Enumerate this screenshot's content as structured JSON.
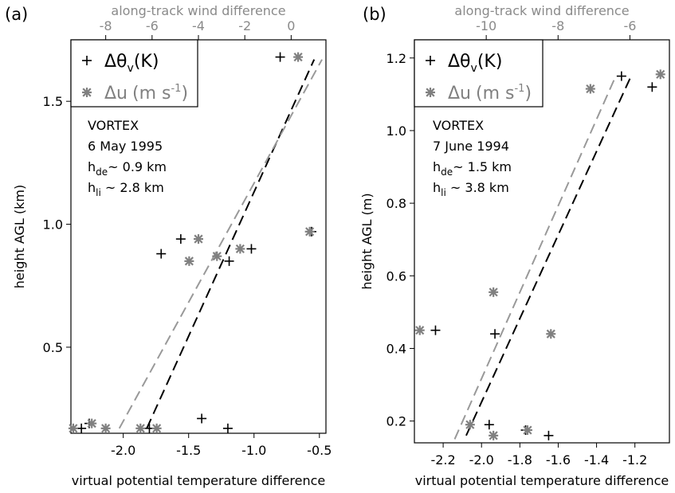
{
  "chart_data": [
    {
      "type": "scatter",
      "panel_label": "(a)",
      "xlabel": "virtual potential temperature difference",
      "x2label": "along-track wind difference",
      "ylabel": "height AGL (km)",
      "xlim": [
        -2.4,
        -0.45
      ],
      "x2lim": [
        -9.5,
        1.5
      ],
      "ylim": [
        0.15,
        1.75
      ],
      "xticks": [
        -2.0,
        -1.5,
        -1.0,
        -0.5
      ],
      "xticklabels": [
        "-2.0",
        "-1.5",
        "-1.0",
        "-0.5"
      ],
      "x2ticks": [
        -8,
        -6,
        -4,
        -2,
        0
      ],
      "x2ticklabels": [
        "-8",
        "-6",
        "-4",
        "-2",
        "0"
      ],
      "yticks": [
        0.5,
        1.0,
        1.5
      ],
      "yticklabels": [
        "0.5",
        "1.0",
        "1.5"
      ],
      "legend": {
        "placement": "top-left",
        "entries": [
          {
            "symbol": "+",
            "main": "Δθ",
            "sub": "v",
            "unit": "(K)",
            "color": "#000000"
          },
          {
            "symbol": "*",
            "main": "Δu",
            "unit": "(m s",
            "sup": "-1",
            "tail": ")",
            "color": "#808080"
          }
        ]
      },
      "annotation": {
        "line1": "VORTEX",
        "line2": "6 May 1995",
        "line3": {
          "pre": "h",
          "sub": "de",
          "post": "~ 0.9 km"
        },
        "line4": {
          "pre": "h",
          "sub": "li",
          "post": " ~ 2.8 km"
        }
      },
      "series": [
        {
          "name": "Δθv (K)",
          "marker": "plus",
          "color": "#000000",
          "axis": "x",
          "points": [
            [
              -2.32,
              0.17
            ],
            [
              -2.26,
              0.19
            ],
            [
              -1.8,
              0.17
            ],
            [
              -1.4,
              0.21
            ],
            [
              -1.2,
              0.17
            ],
            [
              -1.71,
              0.88
            ],
            [
              -1.56,
              0.94
            ],
            [
              -1.19,
              0.85
            ],
            [
              -1.02,
              0.9
            ],
            [
              -0.56,
              0.97
            ],
            [
              -0.8,
              1.68
            ]
          ]
        },
        {
          "name": "Δu (m s-1)",
          "marker": "asterisk",
          "color": "#808080",
          "axis": "x2",
          "points": [
            [
              -9.4,
              0.17
            ],
            [
              -8.6,
              0.19
            ],
            [
              -8.0,
              0.17
            ],
            [
              -6.5,
              0.17
            ],
            [
              -5.8,
              0.17
            ],
            [
              -4.4,
              0.85
            ],
            [
              -4.0,
              0.94
            ],
            [
              -3.2,
              0.87
            ],
            [
              -2.2,
              0.9
            ],
            [
              0.8,
              0.97
            ],
            [
              0.3,
              1.68
            ]
          ]
        }
      ],
      "fit_lines": [
        {
          "color": "#000000",
          "axis": "x",
          "x": [
            -1.82,
            -0.54
          ],
          "y": [
            0.17,
            1.67
          ]
        },
        {
          "color": "#999999",
          "axis": "x",
          "x": [
            -2.03,
            -0.48
          ],
          "y": [
            0.17,
            1.67
          ]
        }
      ]
    },
    {
      "type": "scatter",
      "panel_label": "(b)",
      "xlabel": "virtual potential temperature difference",
      "x2label": "along-track wind difference",
      "ylabel": "height AGL (m)",
      "xlim": [
        -2.35,
        -1.02
      ],
      "x2lim": [
        -12.0,
        -4.9
      ],
      "ylim": [
        0.14,
        1.25
      ],
      "xticks": [
        -2.2,
        -2.0,
        -1.8,
        -1.6,
        -1.4,
        -1.2
      ],
      "xticklabels": [
        "-2.2",
        "-2.0",
        "-1.8",
        "-1.6",
        "-1.4",
        "-1.2"
      ],
      "x2ticks": [
        -10,
        -8,
        -6
      ],
      "x2ticklabels": [
        "-10",
        "-8",
        "-6"
      ],
      "yticks": [
        0.2,
        0.4,
        0.6,
        0.8,
        1.0,
        1.2
      ],
      "yticklabels": [
        "0.2",
        "0.4",
        "0.6",
        "0.8",
        "1.0",
        "1.2"
      ],
      "legend": {
        "placement": "top-left",
        "entries": [
          {
            "symbol": "+",
            "main": "Δθ",
            "sub": "v",
            "unit": "(K)",
            "color": "#000000"
          },
          {
            "symbol": "*",
            "main": "Δu",
            "unit": "(m s",
            "sup": "-1",
            "tail": ")",
            "color": "#808080"
          }
        ]
      },
      "annotation": {
        "line1": "VORTEX",
        "line2": "7 June 1994",
        "line3": {
          "pre": "h",
          "sub": "de",
          "post": "~ 1.5 km"
        },
        "line4": {
          "pre": "h",
          "sub": "li",
          "post": " ~ 3.8 km"
        }
      },
      "series": [
        {
          "name": "Δθv (K)",
          "marker": "plus",
          "color": "#000000",
          "axis": "x",
          "points": [
            [
              -2.24,
              0.45
            ],
            [
              -1.93,
              0.44
            ],
            [
              -1.96,
              0.19
            ],
            [
              -1.77,
              0.175
            ],
            [
              -1.65,
              0.16
            ],
            [
              -1.27,
              1.15
            ],
            [
              -1.11,
              1.12
            ]
          ]
        },
        {
          "name": "Δu (m s-1)",
          "marker": "asterisk",
          "color": "#808080",
          "axis": "x2",
          "points": [
            [
              -11.85,
              0.45
            ],
            [
              -10.45,
              0.19
            ],
            [
              -9.8,
              0.16
            ],
            [
              -9.8,
              0.555
            ],
            [
              -8.85,
              0.175
            ],
            [
              -8.2,
              0.44
            ],
            [
              -7.1,
              1.115
            ],
            [
              -5.15,
              1.155
            ]
          ]
        }
      ],
      "fit_lines": [
        {
          "color": "#000000",
          "axis": "x",
          "x": [
            -2.08,
            -1.22
          ],
          "y": [
            0.16,
            1.15
          ]
        },
        {
          "color": "#999999",
          "axis": "x",
          "x": [
            -2.14,
            -1.3
          ],
          "y": [
            0.15,
            1.15
          ]
        }
      ]
    }
  ]
}
